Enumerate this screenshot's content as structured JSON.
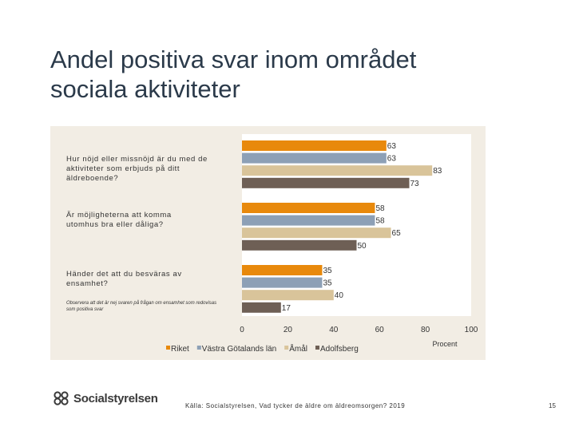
{
  "slide": {
    "title_line1": "Andel positiva svar inom området",
    "title_line2": "sociala aktiviteter",
    "source": "Källa: Socialstyrelsen, Vad tycker de äldre om äldreomsorgen? 2019",
    "page_number": "15",
    "logo_text": "Socialstyrelsen"
  },
  "chart_data": {
    "type": "bar",
    "orientation": "horizontal",
    "categories": [
      "Hur nöjd eller missnöjd är du med de aktiviteter som erbjuds på ditt äldreboende?",
      "Är möjligheterna att komma utomhus bra eller dåliga?",
      "Händer det att du besväras av ensamhet?"
    ],
    "note": "Observera att det är nej svaren på frågan om ensamhet som redovisas som positiva svar",
    "series": [
      {
        "name": "Riket",
        "values": [
          63,
          58,
          35
        ],
        "color": "#e8890c"
      },
      {
        "name": "Västra Götalands län",
        "values": [
          63,
          58,
          35
        ],
        "color": "#8da0b6"
      },
      {
        "name": "Åmål",
        "values": [
          83,
          65,
          40
        ],
        "color": "#d9c49a"
      },
      {
        "name": "Adolfsberg",
        "values": [
          73,
          50,
          17
        ],
        "color": "#6e5f55"
      }
    ],
    "xlim": [
      0,
      100
    ],
    "xticks": [
      0,
      20,
      40,
      60,
      80,
      100
    ],
    "xlabel": "Procent",
    "ylabel": "",
    "legend_position": "bottom",
    "grid": false
  }
}
